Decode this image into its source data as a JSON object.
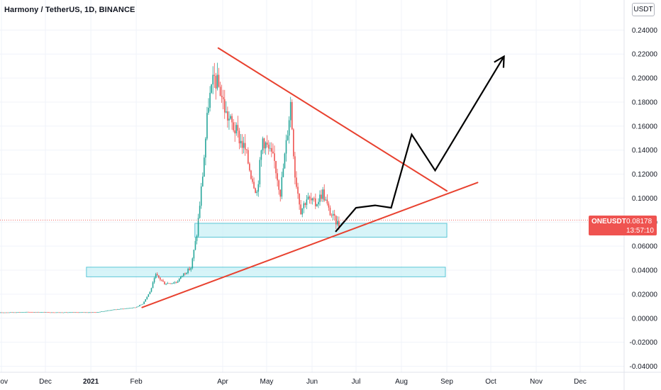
{
  "header": {
    "title": "Harmony / TetherUS, 1D, BINANCE"
  },
  "axis": {
    "currency": "USDT"
  },
  "price_label": {
    "symbol": "ONEUSDT",
    "price": "0.08178",
    "countdown": "13:57:10"
  },
  "colors": {
    "up": "#26a69a",
    "down": "#ef5350",
    "trendline": "#e8412f",
    "zone_fill": "#c9f0f5",
    "zone_stroke": "#5bc6d6",
    "projection": "#000000",
    "grid": "#f0f3fa"
  },
  "chart_data": {
    "type": "candlestick",
    "title": "Harmony / TetherUS, 1D, BINANCE",
    "x_axis": {
      "type": "date",
      "range": [
        "2020-10-31",
        "2021-12-31"
      ],
      "tick_labels": [
        {
          "date": "2020-11-01",
          "label": "Nov"
        },
        {
          "date": "2020-12-01",
          "label": "Dec"
        },
        {
          "date": "2021-01-01",
          "label": "2021"
        },
        {
          "date": "2021-02-01",
          "label": "Feb"
        },
        {
          "date": "2021-04-01",
          "label": "Apr"
        },
        {
          "date": "2021-05-01",
          "label": "May"
        },
        {
          "date": "2021-06-01",
          "label": "Jun"
        },
        {
          "date": "2021-07-01",
          "label": "Jul"
        },
        {
          "date": "2021-08-01",
          "label": "Aug"
        },
        {
          "date": "2021-09-01",
          "label": "Sep"
        },
        {
          "date": "2021-10-01",
          "label": "Oct"
        },
        {
          "date": "2021-11-01",
          "label": "Nov"
        },
        {
          "date": "2021-12-01",
          "label": "Dec"
        }
      ]
    },
    "y_axis": {
      "range": [
        -0.045,
        0.265
      ],
      "tick_labels": [
        "0.24000",
        "0.22000",
        "0.20000",
        "0.18000",
        "0.16000",
        "0.14000",
        "0.12000",
        "0.10000",
        "0.08000",
        "0.06000",
        "0.04000",
        "0.02000",
        "0.00000",
        "-0.02000",
        "-0.04000"
      ],
      "tick_values": [
        0.24,
        0.22,
        0.2,
        0.18,
        0.16,
        0.14,
        0.12,
        0.1,
        0.08,
        0.06,
        0.04,
        0.02,
        0.0,
        -0.02,
        -0.04
      ],
      "side": "right"
    },
    "last_price": 0.08178,
    "price_anchors": [
      [
        "2020-10-31",
        0.0048
      ],
      [
        "2020-11-20",
        0.0052
      ],
      [
        "2020-12-10",
        0.0049
      ],
      [
        "2021-01-05",
        0.005
      ],
      [
        "2021-01-15",
        0.007
      ],
      [
        "2021-01-31",
        0.009
      ],
      [
        "2021-02-05",
        0.012
      ],
      [
        "2021-02-10",
        0.022
      ],
      [
        "2021-02-14",
        0.036
      ],
      [
        "2021-02-20",
        0.029
      ],
      [
        "2021-02-28",
        0.03
      ],
      [
        "2021-03-05",
        0.037
      ],
      [
        "2021-03-10",
        0.042
      ],
      [
        "2021-03-14",
        0.07
      ],
      [
        "2021-03-18",
        0.12
      ],
      [
        "2021-03-22",
        0.18
      ],
      [
        "2021-03-26",
        0.2
      ],
      [
        "2021-03-30",
        0.19
      ],
      [
        "2021-04-03",
        0.17
      ],
      [
        "2021-04-10",
        0.155
      ],
      [
        "2021-04-16",
        0.14
      ],
      [
        "2021-04-20",
        0.12
      ],
      [
        "2021-04-24",
        0.105
      ],
      [
        "2021-04-28",
        0.15
      ],
      [
        "2021-05-02",
        0.14
      ],
      [
        "2021-05-06",
        0.13
      ],
      [
        "2021-05-10",
        0.105
      ],
      [
        "2021-05-14",
        0.145
      ],
      [
        "2021-05-17",
        0.18
      ],
      [
        "2021-05-20",
        0.12
      ],
      [
        "2021-05-24",
        0.09
      ],
      [
        "2021-05-28",
        0.1
      ],
      [
        "2021-06-03",
        0.095
      ],
      [
        "2021-06-08",
        0.105
      ],
      [
        "2021-06-12",
        0.09
      ],
      [
        "2021-06-16",
        0.082
      ],
      [
        "2021-06-19",
        0.078
      ]
    ],
    "annotations": {
      "trendlines": [
        {
          "name": "descending-resistance",
          "from": [
            "2021-03-29",
            0.225
          ],
          "to": [
            "2021-09-01",
            0.106
          ]
        },
        {
          "name": "ascending-support",
          "from": [
            "2021-02-05",
            0.009
          ],
          "to": [
            "2021-09-22",
            0.113
          ]
        }
      ],
      "zones": [
        {
          "name": "upper-support-zone",
          "x": [
            "2021-03-13",
            "2021-09-01"
          ],
          "y": [
            0.0675,
            0.079
          ]
        },
        {
          "name": "lower-support-zone",
          "x": [
            "2020-12-29",
            "2021-08-31"
          ],
          "y": [
            0.0345,
            0.0425
          ]
        }
      ],
      "projection_path": [
        [
          "2021-06-17",
          0.072
        ],
        [
          "2021-07-01",
          0.092
        ],
        [
          "2021-07-14",
          0.094
        ],
        [
          "2021-07-25",
          0.092
        ],
        [
          "2021-08-08",
          0.153
        ],
        [
          "2021-08-24",
          0.123
        ],
        [
          "2021-10-10",
          0.218
        ]
      ]
    }
  }
}
